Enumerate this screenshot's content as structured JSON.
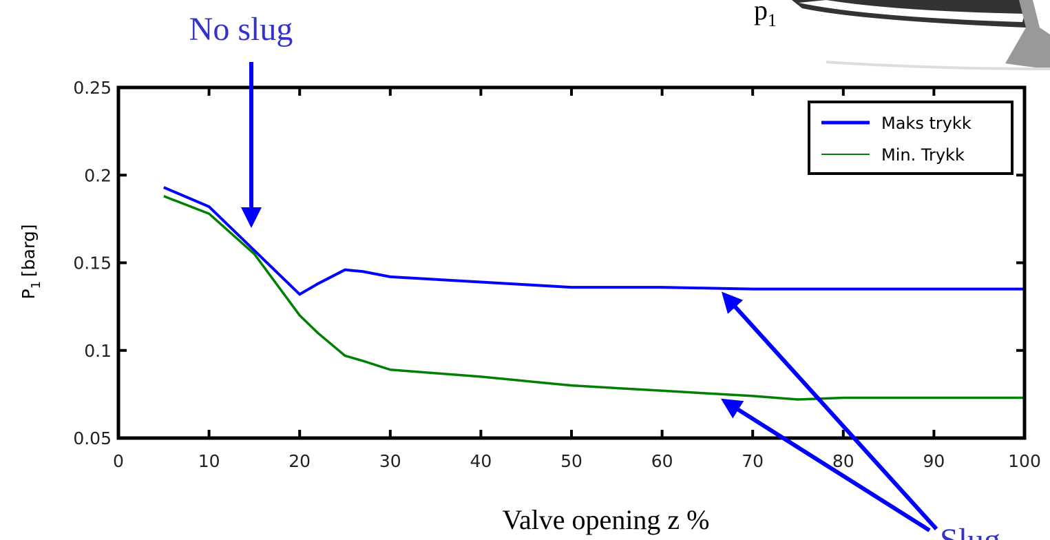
{
  "chart_data": {
    "type": "line",
    "x": [
      5,
      10,
      15,
      20,
      22,
      25,
      27,
      30,
      40,
      50,
      60,
      70,
      75,
      80,
      90,
      100
    ],
    "series": [
      {
        "name": "Maks trykk",
        "color": "#0000ff",
        "values": [
          0.193,
          0.182,
          0.157,
          0.132,
          0.138,
          0.146,
          0.145,
          0.142,
          0.139,
          0.136,
          0.136,
          0.135,
          0.135,
          0.135,
          0.135,
          0.135
        ]
      },
      {
        "name": "Min. Trykk",
        "color": "#008000",
        "values": [
          0.188,
          0.178,
          0.155,
          0.12,
          0.11,
          0.097,
          0.094,
          0.089,
          0.085,
          0.08,
          0.077,
          0.074,
          0.072,
          0.073,
          0.073,
          0.073
        ]
      }
    ],
    "xlim": [
      0,
      100
    ],
    "xticks": [
      0,
      10,
      20,
      30,
      40,
      50,
      60,
      70,
      80,
      90,
      100
    ],
    "ylim": [
      0.05,
      0.25
    ],
    "yticks": [
      0.05,
      0.1,
      0.15,
      0.2,
      0.25
    ],
    "xlabel": "Valve opening z %",
    "ylabel": {
      "main": "P",
      "sub": "1",
      "unit": "[barg]"
    },
    "legend": "upper right",
    "annotations": [
      "No slug",
      "Slug"
    ],
    "inset_label": {
      "main": "p",
      "sub": "1"
    }
  }
}
